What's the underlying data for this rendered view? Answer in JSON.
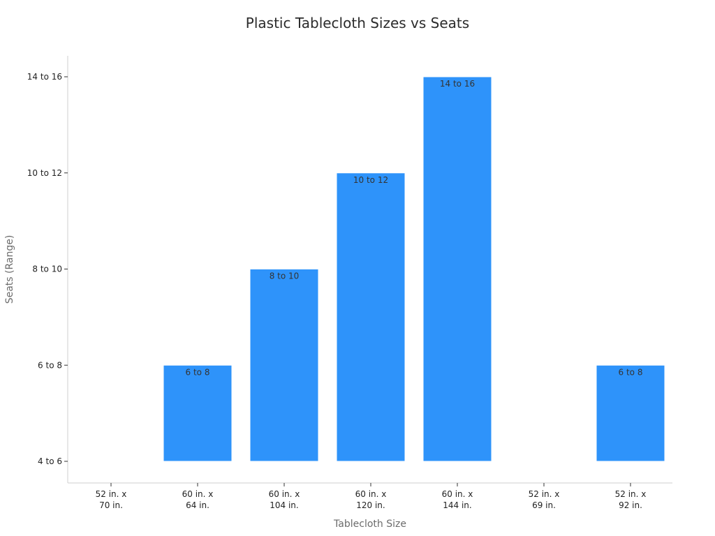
{
  "chart_data": {
    "type": "bar",
    "title": "Plastic Tablecloth Sizes vs Seats",
    "xlabel": "Tablecloth Size",
    "ylabel": "Seats (Range)",
    "categories": [
      [
        "52 in. x",
        "70 in."
      ],
      [
        "60 in. x",
        "64 in."
      ],
      [
        "60 in. x",
        "104 in."
      ],
      [
        "60 in. x",
        "120 in."
      ],
      [
        "60 in. x",
        "144 in."
      ],
      [
        "52 in. x",
        "69 in."
      ],
      [
        "52 in. x",
        "92 in."
      ]
    ],
    "y_ticks": [
      "4 to 6",
      "6 to 8",
      "8 to 10",
      "10 to 12",
      "14 to 16"
    ],
    "y_tick_values": [
      0,
      1,
      2,
      3,
      4
    ],
    "ylim": [
      -0.2,
      4.2
    ],
    "values": [
      0,
      1,
      2,
      3,
      4,
      0,
      1
    ],
    "data_labels": [
      "",
      "6 to 8",
      "8 to 10",
      "10 to 12",
      "14 to 16",
      "",
      "6 to 8"
    ],
    "bar_color": "#2e93fa",
    "grid": false,
    "legend": "none"
  }
}
